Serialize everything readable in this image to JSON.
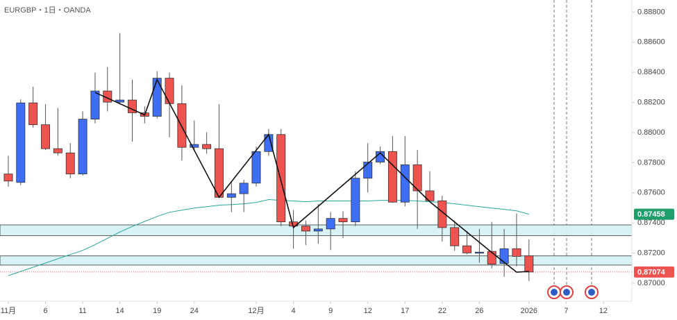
{
  "chart_data": {
    "type": "candlestick",
    "title": "EURGBP・1日・OANDA",
    "up_color": "#3d6ef5",
    "down_color": "#ef5350",
    "open": [
      0.87725,
      0.87669,
      0.88197,
      0.88052,
      0.87893,
      0.87865,
      0.87725,
      0.88089,
      0.88276,
      0.88202,
      0.88216,
      0.88131,
      0.88108,
      0.88361,
      0.88192,
      0.87902,
      0.87921,
      0.87893,
      0.8757,
      0.87594,
      0.87664,
      0.87874,
      0.87987,
      0.87407,
      0.87379,
      0.87346,
      0.8736,
      0.8743,
      0.87407,
      0.87697,
      0.87804,
      0.87874,
      0.87538,
      0.87786,
      0.87613,
      0.87547,
      0.87369,
      0.87248,
      0.87201,
      0.87211,
      0.87131,
      0.87229,
      0.87182
    ],
    "high": [
      0.87846,
      0.8822,
      0.88304,
      0.88188,
      0.88164,
      0.8793,
      0.88141,
      0.88398,
      0.88435,
      0.8866,
      0.88351,
      0.88174,
      0.88407,
      0.88398,
      0.88314,
      0.8808,
      0.88001,
      0.88188,
      0.87673,
      0.87687,
      0.87907,
      0.88024,
      0.88024,
      0.87486,
      0.87416,
      0.87524,
      0.87472,
      0.87477,
      0.87743,
      0.8793,
      0.87907,
      0.87977,
      0.87977,
      0.87884,
      0.87743,
      0.8758,
      0.87416,
      0.87346,
      0.8736,
      0.87407,
      0.8736,
      0.87463,
      0.8729
    ],
    "low": [
      0.87641,
      0.8765,
      0.88033,
      0.87884,
      0.87846,
      0.87697,
      0.87715,
      0.88061,
      0.88141,
      0.88188,
      0.8794,
      0.88061,
      0.88094,
      0.87968,
      0.87814,
      0.87884,
      0.8786,
      0.87566,
      0.87472,
      0.87472,
      0.87641,
      0.87846,
      0.87379,
      0.87229,
      0.87253,
      0.87262,
      0.8722,
      0.87299,
      0.87379,
      0.87603,
      0.8779,
      0.87533,
      0.8751,
      0.8736,
      0.87542,
      0.87276,
      0.87215,
      0.87192,
      0.87136,
      0.87098,
      0.87042,
      0.87112,
      0.87014
    ],
    "close": [
      0.87678,
      0.88197,
      0.88052,
      0.87893,
      0.87865,
      0.87725,
      0.88089,
      0.88276,
      0.88202,
      0.88216,
      0.88131,
      0.88108,
      0.88361,
      0.88192,
      0.87902,
      0.87921,
      0.87893,
      0.8757,
      0.87594,
      0.87664,
      0.87874,
      0.87987,
      0.87407,
      0.87379,
      0.87346,
      0.8736,
      0.8743,
      0.87407,
      0.87697,
      0.87804,
      0.87874,
      0.87538,
      0.87786,
      0.87613,
      0.87547,
      0.87369,
      0.87248,
      0.87201,
      0.87206,
      0.87126,
      0.87229,
      0.87178,
      0.87074
    ],
    "ma": {
      "color": "#26a69a",
      "values": [
        0.8705,
        0.87078,
        0.87106,
        0.87134,
        0.87162,
        0.8719,
        0.87218,
        0.87256,
        0.87298,
        0.8734,
        0.87377,
        0.8741,
        0.87443,
        0.87471,
        0.87485,
        0.87499,
        0.87508,
        0.87518,
        0.87522,
        0.87527,
        0.87536,
        0.87555,
        0.8755,
        0.87546,
        0.87541,
        0.87546,
        0.87546,
        0.87546,
        0.87546,
        0.87546,
        0.8755,
        0.8755,
        0.8755,
        0.87546,
        0.87541,
        0.87536,
        0.87527,
        0.87518,
        0.87508,
        0.87499,
        0.8749,
        0.8748,
        0.87458
      ]
    },
    "zigzag": {
      "color": "#111111",
      "x": [
        7,
        11,
        12,
        17,
        21,
        23,
        30,
        34,
        39,
        41,
        42
      ],
      "values": [
        0.88266,
        0.88117,
        0.88351,
        0.8757,
        0.87987,
        0.87369,
        0.87865,
        0.87541,
        0.87204,
        0.87073,
        0.87078
      ]
    },
    "zones": [
      [
        0.87316,
        0.87387
      ],
      [
        0.8712,
        0.87181
      ]
    ],
    "ylim": [
      0.8688,
      0.8888
    ],
    "yticks": [
      {
        "value": 0.888,
        "label": "0.88800"
      },
      {
        "value": 0.886,
        "label": "0.88600"
      },
      {
        "value": 0.884,
        "label": "0.88400"
      },
      {
        "value": 0.882,
        "label": "0.88200"
      },
      {
        "value": 0.88,
        "label": "0.88000"
      },
      {
        "value": 0.878,
        "label": "0.87800"
      },
      {
        "value": 0.876,
        "label": "0.87600"
      },
      {
        "value": 0.874,
        "label": "0.87400"
      },
      {
        "value": 0.872,
        "label": "0.87200"
      },
      {
        "value": 0.87,
        "label": "0.87000"
      }
    ],
    "xlim": [
      -0.67,
      50.3
    ],
    "xticks": [
      {
        "value": 0,
        "label": "11月"
      },
      {
        "value": 3,
        "label": "6"
      },
      {
        "value": 6,
        "label": "11"
      },
      {
        "value": 9,
        "label": "14"
      },
      {
        "value": 12,
        "label": "19"
      },
      {
        "value": 15,
        "label": "24"
      },
      {
        "value": 20,
        "label": "12月"
      },
      {
        "value": 23,
        "label": "4"
      },
      {
        "value": 26,
        "label": "9"
      },
      {
        "value": 29,
        "label": "12"
      },
      {
        "value": 32,
        "label": "17"
      },
      {
        "value": 35,
        "label": "22"
      },
      {
        "value": 38,
        "label": "26"
      },
      {
        "value": 42,
        "label": "2026"
      },
      {
        "value": 45,
        "label": "7"
      },
      {
        "value": 48,
        "label": "12"
      }
    ]
  }
}
